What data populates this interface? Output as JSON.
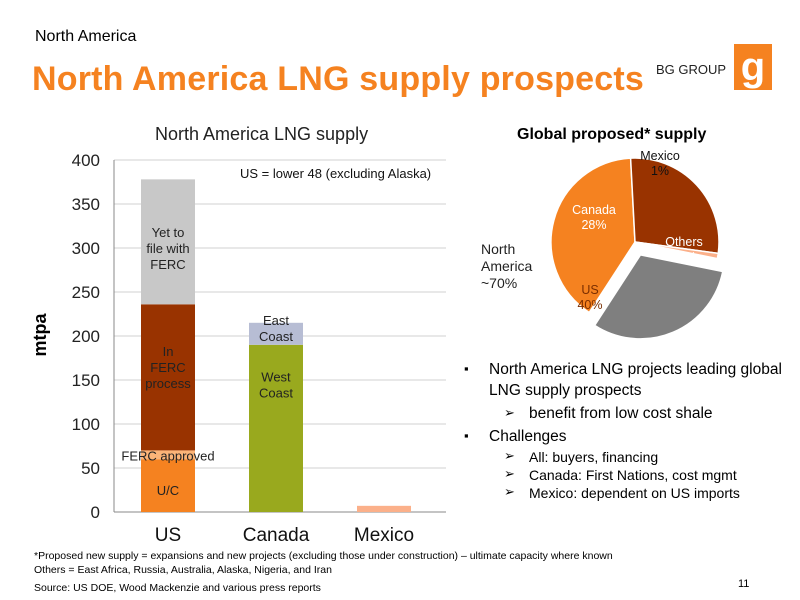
{
  "header": {
    "section": "North America",
    "title": "North America LNG supply prospects",
    "brand": "BG GROUP",
    "logo_letter": "g",
    "logo_color": "#f58220"
  },
  "chart_data": [
    {
      "type": "bar",
      "stacked": true,
      "title": "North America LNG supply",
      "ylabel": "mtpa",
      "xlabel": "",
      "ylim": [
        0,
        400
      ],
      "yticks": [
        0,
        50,
        100,
        150,
        200,
        250,
        300,
        350,
        400
      ],
      "categories": [
        "US",
        "Canada",
        "Mexico"
      ],
      "annotation": "US = lower 48 (excluding Alaska)",
      "grid": true,
      "series": [
        {
          "name": "U/C",
          "color": "#f58220",
          "values": [
            60,
            0,
            0
          ]
        },
        {
          "name": "FERC approved",
          "color": "#fbb478",
          "values": [
            10,
            0,
            0
          ]
        },
        {
          "name": "In FERC process",
          "color": "#993300",
          "values": [
            166,
            0,
            0
          ]
        },
        {
          "name": "Yet to file with FERC",
          "color": "#c8c8c8",
          "values": [
            142,
            0,
            0
          ]
        },
        {
          "name": "West Coast",
          "color": "#99a91e",
          "values": [
            0,
            190,
            0
          ]
        },
        {
          "name": "East Coast",
          "color": "#b7bdd4",
          "values": [
            0,
            25,
            0
          ]
        },
        {
          "name": "",
          "color": "#fbb08a",
          "values": [
            0,
            0,
            7
          ]
        }
      ],
      "segment_labels": [
        {
          "text": "U/C",
          "category": "US",
          "y": 25
        },
        {
          "text": "FERC approved",
          "category": "US",
          "y": 64
        },
        {
          "text": "In FERC process",
          "category": "US",
          "y": 165
        },
        {
          "text": "Yet to file with FERC",
          "category": "US",
          "y": 300
        },
        {
          "text": "West Coast",
          "category": "Canada",
          "y": 145
        },
        {
          "text": "East Coast",
          "category": "Canada",
          "y": 209
        }
      ]
    },
    {
      "type": "pie",
      "title": "Global proposed* supply",
      "slices": [
        {
          "label": "US",
          "value": 40,
          "text": "40%",
          "color": "#f58220"
        },
        {
          "label": "Canada",
          "value": 28,
          "text": "28%",
          "color": "#993300"
        },
        {
          "label": "Mexico",
          "value": 1,
          "text": "1%",
          "color": "#fbb08a"
        },
        {
          "label": "Others",
          "value": 31,
          "text": "31%",
          "color": "#7f7f7f"
        }
      ],
      "annotation": "North America ~70%"
    }
  ],
  "bullets": {
    "b1": "North America LNG projects leading global LNG supply prospects",
    "b1_sub": "benefit from low cost shale",
    "b2": "Challenges",
    "b2_subs": [
      "All: buyers, financing",
      "Canada: First Nations, cost mgmt",
      "Mexico: dependent on US imports"
    ]
  },
  "footer": {
    "footnote1": "*Proposed new supply = expansions and new projects (excluding those under construction) – ultimate capacity where known",
    "footnote2": "Others = East Africa, Russia, Australia, Alaska, Nigeria, and Iran",
    "source": "Source: US DOE, Wood Mackenzie and various press reports",
    "page": "11"
  }
}
